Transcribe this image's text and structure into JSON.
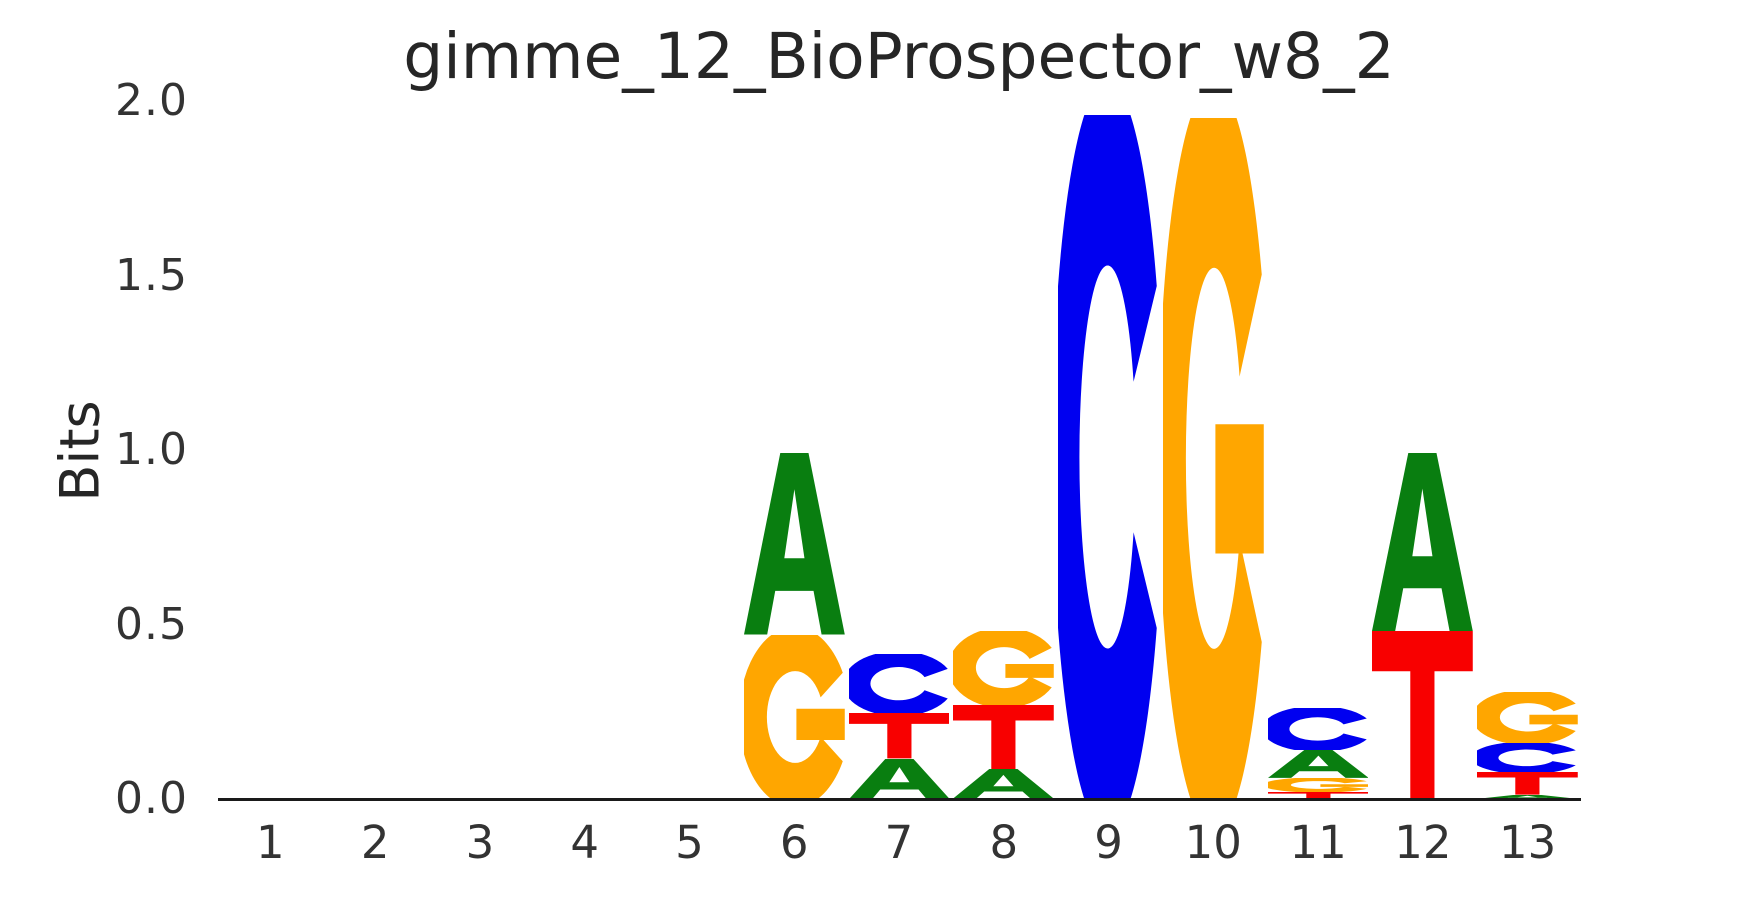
{
  "chart_data": {
    "type": "sequence_logo",
    "title": "gimme_12_BioProspector_w8_2",
    "xlabel": "",
    "ylabel": "Bits",
    "ylim": [
      0.0,
      2.0
    ],
    "yticks": [
      "0.0",
      "0.5",
      "1.0",
      "1.5",
      "2.0"
    ],
    "xticks": [
      "1",
      "2",
      "3",
      "4",
      "5",
      "6",
      "7",
      "8",
      "9",
      "10",
      "11",
      "12",
      "13"
    ],
    "grid": false,
    "legend": false,
    "base_colors": {
      "A": "#097e10",
      "C": "#0000f0",
      "G": "#ffa600",
      "T": "#f80000"
    },
    "positions": [
      {
        "position": 1,
        "stack": []
      },
      {
        "position": 2,
        "stack": []
      },
      {
        "position": 3,
        "stack": []
      },
      {
        "position": 4,
        "stack": []
      },
      {
        "position": 5,
        "stack": []
      },
      {
        "position": 6,
        "stack": [
          {
            "base": "G",
            "bits": 0.47
          },
          {
            "base": "A",
            "bits": 0.52
          }
        ]
      },
      {
        "position": 7,
        "stack": [
          {
            "base": "A",
            "bits": 0.115
          },
          {
            "base": "T",
            "bits": 0.13
          },
          {
            "base": "C",
            "bits": 0.17
          }
        ]
      },
      {
        "position": 8,
        "stack": [
          {
            "base": "A",
            "bits": 0.085
          },
          {
            "base": "T",
            "bits": 0.185
          },
          {
            "base": "G",
            "bits": 0.21
          }
        ]
      },
      {
        "position": 9,
        "stack": [
          {
            "base": "C",
            "bits": 1.96
          }
        ]
      },
      {
        "position": 10,
        "stack": [
          {
            "base": "G",
            "bits": 1.95
          }
        ]
      },
      {
        "position": 11,
        "stack": [
          {
            "base": "T",
            "bits": 0.02
          },
          {
            "base": "G",
            "bits": 0.04
          },
          {
            "base": "A",
            "bits": 0.08
          },
          {
            "base": "C",
            "bits": 0.12
          }
        ]
      },
      {
        "position": 12,
        "stack": [
          {
            "base": "T",
            "bits": 0.48
          },
          {
            "base": "A",
            "bits": 0.51
          }
        ]
      },
      {
        "position": 13,
        "stack": [
          {
            "base": "A",
            "bits": 0.011
          },
          {
            "base": "T",
            "bits": 0.065
          },
          {
            "base": "C",
            "bits": 0.085
          },
          {
            "base": "G",
            "bits": 0.145
          }
        ]
      }
    ]
  }
}
